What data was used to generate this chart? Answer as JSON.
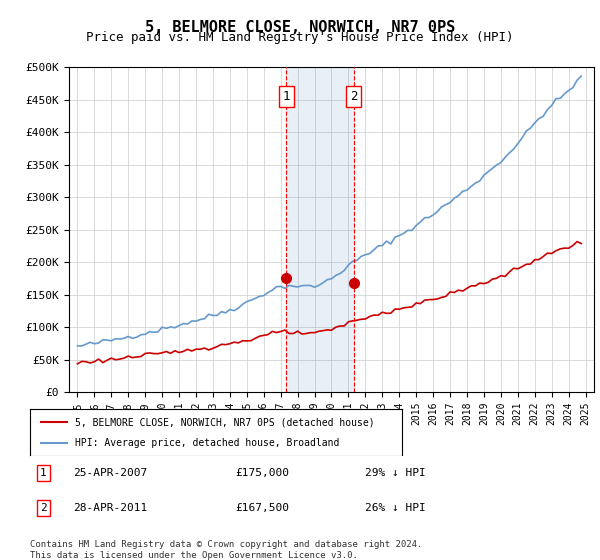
{
  "title": "5, BELMORE CLOSE, NORWICH, NR7 0PS",
  "subtitle": "Price paid vs. HM Land Registry's House Price Index (HPI)",
  "xlabel": "",
  "ylabel": "",
  "ylim": [
    0,
    500000
  ],
  "yticks": [
    0,
    50000,
    100000,
    150000,
    200000,
    250000,
    300000,
    350000,
    400000,
    450000,
    500000
  ],
  "ytick_labels": [
    "£0",
    "£50K",
    "£100K",
    "£150K",
    "£200K",
    "£250K",
    "£300K",
    "£350K",
    "£400K",
    "£450K",
    "£500K"
  ],
  "hpi_color": "#6699cc",
  "price_color": "#cc0000",
  "sale1_date": 2007.32,
  "sale1_price": 175000,
  "sale1_label": "1",
  "sale2_date": 2011.32,
  "sale2_price": 167500,
  "sale2_label": "2",
  "legend_property": "5, BELMORE CLOSE, NORWICH, NR7 0PS (detached house)",
  "legend_hpi": "HPI: Average price, detached house, Broadland",
  "annotation1": "1    25-APR-2007         £175,000        29% ↓ HPI",
  "annotation2": "2    28-APR-2011         £167,500        26% ↓ HPI",
  "footer": "Contains HM Land Registry data © Crown copyright and database right 2024.\nThis data is licensed under the Open Government Licence v3.0.",
  "background_color": "#ffffff",
  "grid_color": "#cccccc",
  "xlim_start": 1994.5,
  "xlim_end": 2025.5
}
